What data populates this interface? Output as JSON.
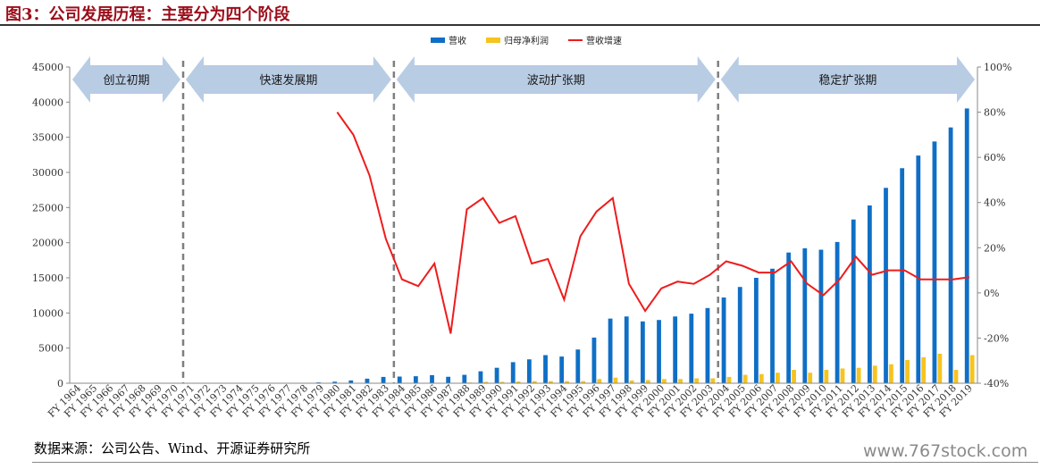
{
  "header": {
    "title": "图3：公司发展历程：主要分为四个阶段"
  },
  "footer": {
    "source": "数据来源：公司公告、Wind、开源证券研究所",
    "watermark": "www.767stock.com"
  },
  "chart_data": {
    "type": "bar",
    "categories": [
      "FY 1964",
      "FY 1965",
      "FY 1966",
      "FY 1967",
      "FY 1968",
      "FY 1969",
      "FY 1970",
      "FY 1971",
      "FY 1972",
      "FY 1973",
      "FY 1974",
      "FY 1975",
      "FY 1976",
      "FY 1977",
      "FY 1978",
      "FY 1979",
      "FY 1980",
      "FY 1981",
      "FY 1982",
      "FY 1983",
      "FY 1984",
      "FY 1985",
      "FY 1986",
      "FY 1987",
      "FY 1988",
      "FY 1989",
      "FY 1990",
      "FY 1991",
      "FY 1992",
      "FY 1993",
      "FY 1994",
      "FY 1995",
      "FY 1996",
      "FY 1997",
      "FY 1998",
      "FY 1999",
      "FY 2000",
      "FY 2001",
      "FY 2002",
      "FY 2003",
      "FY 2004",
      "FY 2005",
      "FY 2006",
      "FY 2007",
      "FY 2008",
      "FY 2009",
      "FY 2010",
      "FY 2011",
      "FY 2012",
      "FY 2013",
      "FY 2014",
      "FY 2015",
      "FY 2016",
      "FY 2017",
      "FY 2018",
      "FY 2019"
    ],
    "series": [
      {
        "name": "营收",
        "axis": "left",
        "color": "#0f6fc6",
        "values": [
          0,
          0,
          0,
          0,
          0,
          0,
          0,
          0,
          0,
          0,
          0,
          0,
          0,
          0,
          0,
          120,
          220,
          400,
          650,
          900,
          950,
          1000,
          1150,
          920,
          1200,
          1700,
          2200,
          3000,
          3400,
          4000,
          3800,
          4800,
          6500,
          9200,
          9500,
          8800,
          9000,
          9500,
          9900,
          10700,
          12200,
          13700,
          15000,
          16300,
          18600,
          19200,
          19000,
          20100,
          23300,
          25300,
          27800,
          30600,
          32400,
          34400,
          36400,
          39100
        ]
      },
      {
        "name": "归母净利润",
        "axis": "left",
        "color": "#f7c31f",
        "values": [
          0,
          0,
          0,
          0,
          0,
          0,
          0,
          0,
          0,
          0,
          0,
          0,
          0,
          0,
          0,
          5,
          10,
          20,
          30,
          40,
          60,
          60,
          50,
          40,
          100,
          200,
          200,
          250,
          300,
          300,
          300,
          300,
          600,
          800,
          400,
          450,
          600,
          600,
          700,
          700,
          900,
          1200,
          1300,
          1500,
          1900,
          1500,
          1900,
          2100,
          2200,
          2500,
          2700,
          3300,
          3700,
          4200,
          1900,
          4000
        ]
      },
      {
        "name": "营收增速",
        "axis": "right",
        "color": "#ee1c1c",
        "type": "line",
        "values": [
          null,
          null,
          null,
          null,
          null,
          null,
          null,
          null,
          null,
          null,
          null,
          null,
          null,
          null,
          null,
          null,
          80,
          70,
          52,
          24,
          6,
          3,
          13,
          -18,
          37,
          42,
          31,
          34,
          13,
          15,
          -3,
          25,
          36,
          42,
          4,
          -8,
          2,
          5,
          4,
          8,
          14,
          12,
          9,
          9,
          14,
          4,
          -1,
          6,
          16,
          8,
          10,
          10,
          6,
          6,
          6,
          7
        ]
      }
    ],
    "y_left": {
      "ylim": [
        0,
        45000
      ],
      "ticks": [
        "0",
        "5000",
        "10000",
        "15000",
        "20000",
        "25000",
        "30000",
        "35000",
        "40000",
        "45000"
      ]
    },
    "y_right": {
      "ylim": [
        -40,
        100
      ],
      "ticks": [
        "-40%",
        "-20%",
        "0%",
        "20%",
        "40%",
        "60%",
        "80%",
        "100%"
      ]
    },
    "legend": {
      "position": "top-center"
    },
    "phases": [
      {
        "label": "创立初期",
        "from": "FY 1964",
        "to": "FY 1970"
      },
      {
        "label": "快速发展期",
        "from": "FY 1971",
        "to": "FY 1983"
      },
      {
        "label": "波动扩张期",
        "from": "FY 1984",
        "to": "FY 2003"
      },
      {
        "label": "稳定扩张期",
        "from": "FY 2004",
        "to": "FY 2019"
      }
    ],
    "colors": {
      "arrow": "#b8cce4",
      "divider": "#7f7f7f",
      "title": "#9b0d1a"
    }
  }
}
